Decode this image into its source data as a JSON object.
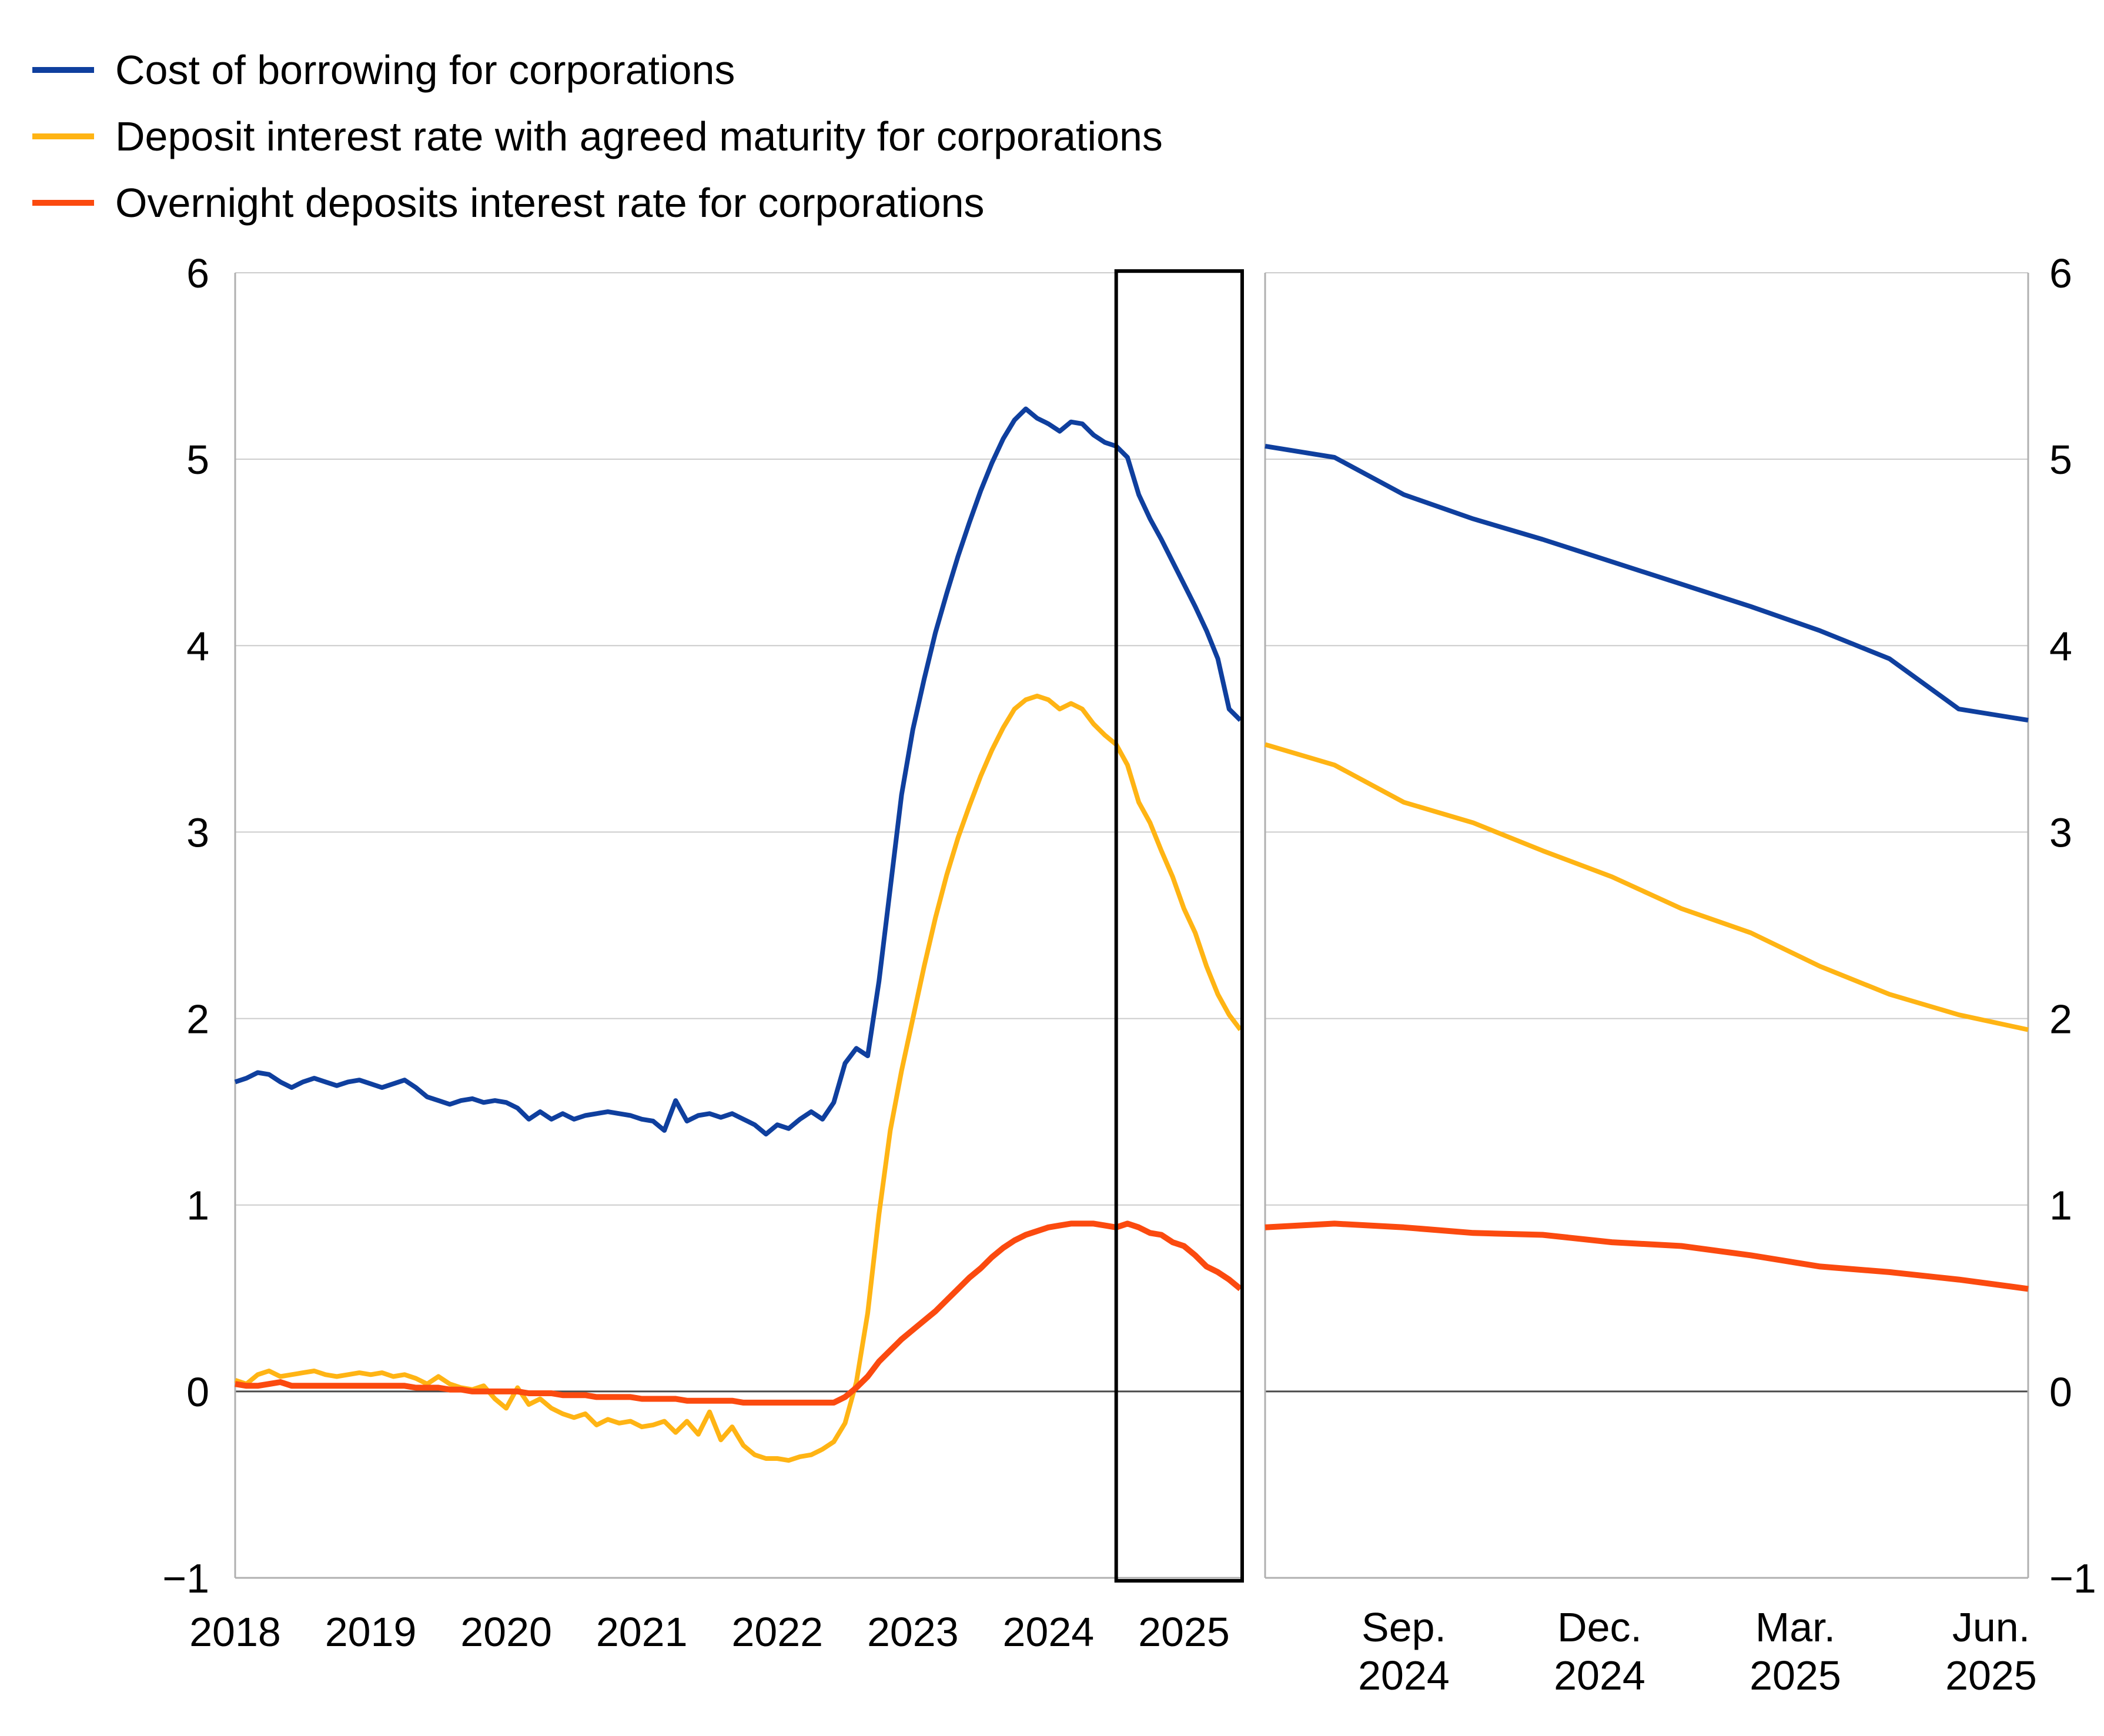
{
  "legend": [
    {
      "label": "Cost of borrowing for corporations",
      "color": "#0f3f9e"
    },
    {
      "label": "Deposit interest rate with agreed maturity for corporations",
      "color": "#ffb414"
    },
    {
      "label": "Overnight deposits interest rate for corporations",
      "color": "#fb4a0f"
    }
  ],
  "chart_data": [
    {
      "id": "main-panel",
      "type": "line",
      "title": "",
      "xlabel": "",
      "ylabel": "",
      "freq": "monthly",
      "x_start": "2018-01",
      "x_end": "2025-06",
      "ylim": [
        -1,
        6
      ],
      "yticks": [
        6,
        5,
        4,
        3,
        2,
        1,
        0,
        -1
      ],
      "grid": true,
      "zero_line": true,
      "legend_position": "top-left",
      "xticklabels": [
        "2018",
        "2019",
        "2020",
        "2021",
        "2022",
        "2023",
        "2024",
        "2025"
      ],
      "xtick_month_index": [
        0,
        12,
        24,
        36,
        48,
        60,
        72,
        84
      ],
      "zoom_box": {
        "from": "2024-07",
        "to": "2025-06"
      },
      "series": [
        {
          "name": "Cost of borrowing for corporations",
          "color": "#0f3f9e",
          "width": 8,
          "values": [
            1.66,
            1.68,
            1.71,
            1.7,
            1.66,
            1.63,
            1.66,
            1.68,
            1.66,
            1.64,
            1.66,
            1.67,
            1.65,
            1.63,
            1.65,
            1.67,
            1.63,
            1.58,
            1.56,
            1.54,
            1.56,
            1.57,
            1.55,
            1.56,
            1.55,
            1.52,
            1.46,
            1.5,
            1.46,
            1.49,
            1.46,
            1.48,
            1.49,
            1.5,
            1.49,
            1.48,
            1.46,
            1.45,
            1.4,
            1.56,
            1.45,
            1.48,
            1.49,
            1.47,
            1.49,
            1.46,
            1.43,
            1.38,
            1.43,
            1.41,
            1.46,
            1.5,
            1.46,
            1.55,
            1.76,
            1.84,
            1.8,
            2.2,
            2.7,
            3.2,
            3.55,
            3.82,
            4.07,
            4.28,
            4.48,
            4.66,
            4.83,
            4.98,
            5.11,
            5.21,
            5.27,
            5.22,
            5.19,
            5.15,
            5.2,
            5.19,
            5.13,
            5.09,
            5.07,
            5.01,
            4.81,
            4.68,
            4.57,
            4.45,
            4.33,
            4.21,
            4.08,
            3.93,
            3.66,
            3.6
          ]
        },
        {
          "name": "Deposit interest rate with agreed maturity for corporations",
          "color": "#ffb414",
          "width": 8,
          "values": [
            0.06,
            0.04,
            0.09,
            0.11,
            0.08,
            0.09,
            0.1,
            0.11,
            0.09,
            0.08,
            0.09,
            0.1,
            0.09,
            0.1,
            0.08,
            0.09,
            0.07,
            0.04,
            0.08,
            0.04,
            0.02,
            0.01,
            0.03,
            -0.04,
            -0.09,
            0.02,
            -0.07,
            -0.04,
            -0.09,
            -0.12,
            -0.14,
            -0.12,
            -0.18,
            -0.15,
            -0.17,
            -0.16,
            -0.19,
            -0.18,
            -0.16,
            -0.22,
            -0.16,
            -0.23,
            -0.11,
            -0.26,
            -0.19,
            -0.29,
            -0.34,
            -0.36,
            -0.36,
            -0.37,
            -0.35,
            -0.34,
            -0.31,
            -0.27,
            -0.17,
            0.05,
            0.42,
            0.95,
            1.4,
            1.72,
            2.0,
            2.28,
            2.54,
            2.77,
            2.97,
            3.14,
            3.3,
            3.44,
            3.56,
            3.66,
            3.71,
            3.73,
            3.71,
            3.66,
            3.69,
            3.66,
            3.58,
            3.52,
            3.47,
            3.36,
            3.16,
            3.05,
            2.9,
            2.76,
            2.59,
            2.46,
            2.28,
            2.13,
            2.02,
            1.94
          ]
        },
        {
          "name": "Overnight deposits interest rate for corporations",
          "color": "#fb4a0f",
          "width": 10,
          "values": [
            0.04,
            0.03,
            0.03,
            0.04,
            0.05,
            0.03,
            0.03,
            0.03,
            0.03,
            0.03,
            0.03,
            0.03,
            0.03,
            0.03,
            0.03,
            0.03,
            0.02,
            0.02,
            0.02,
            0.01,
            0.01,
            0.0,
            0.0,
            0.0,
            0.0,
            0.0,
            -0.01,
            -0.01,
            -0.01,
            -0.02,
            -0.02,
            -0.02,
            -0.03,
            -0.03,
            -0.03,
            -0.03,
            -0.04,
            -0.04,
            -0.04,
            -0.04,
            -0.05,
            -0.05,
            -0.05,
            -0.05,
            -0.05,
            -0.06,
            -0.06,
            -0.06,
            -0.06,
            -0.06,
            -0.06,
            -0.06,
            -0.06,
            -0.06,
            -0.03,
            0.02,
            0.08,
            0.16,
            0.22,
            0.28,
            0.33,
            0.38,
            0.43,
            0.49,
            0.55,
            0.61,
            0.66,
            0.72,
            0.77,
            0.81,
            0.84,
            0.86,
            0.88,
            0.89,
            0.9,
            0.9,
            0.9,
            0.89,
            0.88,
            0.9,
            0.88,
            0.85,
            0.84,
            0.8,
            0.78,
            0.73,
            0.67,
            0.64,
            0.6,
            0.55
          ]
        }
      ]
    },
    {
      "id": "zoom-panel",
      "type": "line",
      "title": "",
      "xlabel": "",
      "ylabel": "",
      "freq": "monthly",
      "x_start": "2024-07",
      "x_end": "2025-06",
      "ylim": [
        -1,
        6
      ],
      "yticks": [
        6,
        5,
        4,
        3,
        2,
        1,
        0,
        -1
      ],
      "grid": true,
      "zero_line": true,
      "xticklabels": [
        [
          "Sep.",
          "2024"
        ],
        [
          "Dec.",
          "2024"
        ],
        [
          "Mar.",
          "2025"
        ],
        [
          "Jun.",
          "2025"
        ]
      ],
      "xtick_month_index": [
        2,
        5,
        8,
        11
      ],
      "series": [
        {
          "name": "Cost of borrowing for corporations",
          "color": "#0f3f9e",
          "width": 8,
          "values": [
            5.07,
            5.01,
            4.81,
            4.68,
            4.57,
            4.45,
            4.33,
            4.21,
            4.08,
            3.93,
            3.66,
            3.6
          ]
        },
        {
          "name": "Deposit interest rate with agreed maturity for corporations",
          "color": "#ffb414",
          "width": 8,
          "values": [
            3.47,
            3.36,
            3.16,
            3.05,
            2.9,
            2.76,
            2.59,
            2.46,
            2.28,
            2.13,
            2.02,
            1.94
          ]
        },
        {
          "name": "Overnight deposits interest rate for corporations",
          "color": "#fb4a0f",
          "width": 10,
          "values": [
            0.88,
            0.9,
            0.88,
            0.85,
            0.84,
            0.8,
            0.78,
            0.73,
            0.67,
            0.64,
            0.6,
            0.55
          ]
        }
      ]
    }
  ]
}
